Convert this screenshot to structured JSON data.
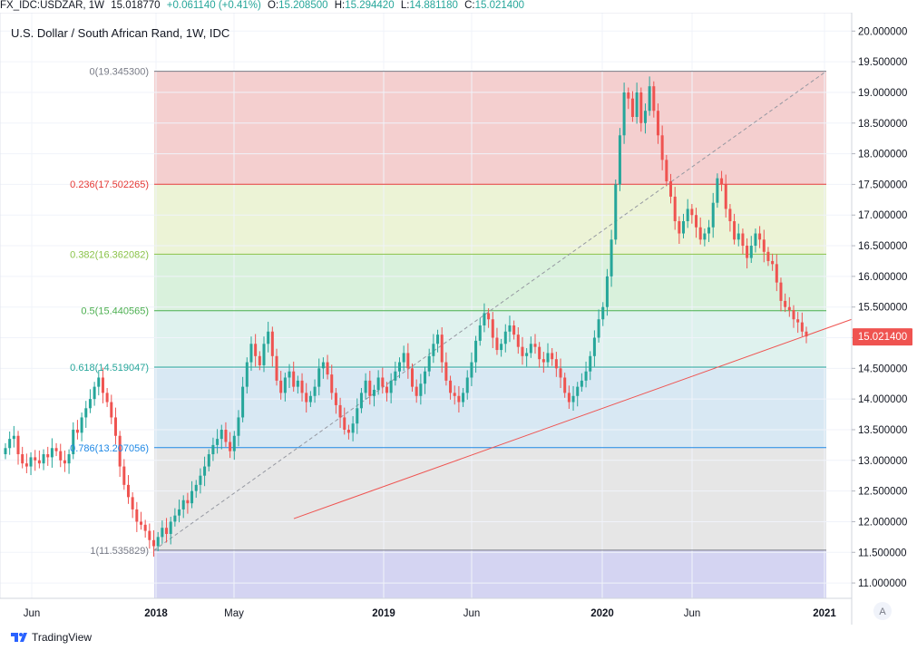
{
  "header": {
    "symbol": "FX_IDC:USDZAR, 1W",
    "last": "15.018770",
    "change": "+0.061140 (+0.41%)",
    "o_label": "O:",
    "o": "15.208500",
    "h_label": "H:",
    "h": "15.294420",
    "l_label": "L:",
    "l": "14.881180",
    "c_label": "C:",
    "c": "15.021400"
  },
  "chart_title": "U.S. Dollar / South African Rand, 1W, IDC",
  "price_badge": "15.021400",
  "auto_scale": "A",
  "brand": "TradingView",
  "colors": {
    "up": "#26a69a",
    "down": "#ef5350",
    "badge": "#ef5350",
    "fib_0": "#f4cfcf",
    "fib_236": "#ecf3d6",
    "fib_382": "#d9f1dc",
    "fib_5": "#dff2ee",
    "fib_618": "#d8e8f3",
    "fib_786": "#e6e6e6",
    "fib_1": "#d4d4f2"
  },
  "chart_data": {
    "type": "candlestick",
    "title": "U.S. Dollar / South African Rand, 1W, IDC",
    "x_ticks": [
      "Jun",
      "2018",
      "May",
      "2019",
      "Jun",
      "2020",
      "Jun",
      "2021"
    ],
    "y_ticks": [
      "11.000000",
      "11.500000",
      "12.000000",
      "12.500000",
      "13.000000",
      "13.500000",
      "14.000000",
      "14.500000",
      "15.000000",
      "15.500000",
      "16.000000",
      "16.500000",
      "17.000000",
      "17.500000",
      "18.000000",
      "18.500000",
      "19.000000",
      "19.500000",
      "20.000000"
    ],
    "ylim": [
      10.75,
      20.3
    ],
    "fib_levels": [
      {
        "ratio": "0",
        "price": 19.3453,
        "label": "0(19.345300)",
        "color": "#787b86"
      },
      {
        "ratio": "0.236",
        "price": 17.502265,
        "label": "0.236(17.502265)",
        "color": "#e53935"
      },
      {
        "ratio": "0.382",
        "price": 16.362082,
        "label": "0.382(16.362082)",
        "color": "#8bc34a"
      },
      {
        "ratio": "0.5",
        "price": 15.440565,
        "label": "0.5(15.440565)",
        "color": "#4caf50"
      },
      {
        "ratio": "0.618",
        "price": 14.519047,
        "label": "0.618(14.519047)",
        "color": "#26a69a"
      },
      {
        "ratio": "0.786",
        "price": 13.207056,
        "label": "0.786(13.207056)",
        "color": "#1e88e5"
      },
      {
        "ratio": "1",
        "price": 11.535829,
        "label": "1(11.535829)",
        "color": "#787b86"
      }
    ],
    "trend_line": {
      "from": [
        0.345,
        12.05
      ],
      "to": [
        1.0,
        15.3
      ]
    },
    "fib_diagonal": {
      "from": [
        0.0,
        11.535829
      ],
      "to": [
        1.0,
        19.3453
      ]
    },
    "closes": [
      13.2,
      13.35,
      13.4,
      13.1,
      12.95,
      12.9,
      13.05,
      13.0,
      12.95,
      13.1,
      13.05,
      13.2,
      13.15,
      13.0,
      12.95,
      13.1,
      13.5,
      13.45,
      13.7,
      13.85,
      14.0,
      14.2,
      14.35,
      14.1,
      13.95,
      13.7,
      13.4,
      12.9,
      12.6,
      12.4,
      12.2,
      12.0,
      11.95,
      11.85,
      11.7,
      11.6,
      11.75,
      11.9,
      11.8,
      12.0,
      12.1,
      12.2,
      12.35,
      12.3,
      12.5,
      12.6,
      12.75,
      12.9,
      13.1,
      13.25,
      13.35,
      13.5,
      13.3,
      13.15,
      13.4,
      13.7,
      14.2,
      14.6,
      14.9,
      14.7,
      14.55,
      14.9,
      15.1,
      14.7,
      14.3,
      14.1,
      14.35,
      14.45,
      14.2,
      14.3,
      14.1,
      13.95,
      14.05,
      14.2,
      14.5,
      14.6,
      14.4,
      14.1,
      13.9,
      13.7,
      13.5,
      13.45,
      13.6,
      13.85,
      14.1,
      14.3,
      14.05,
      14.15,
      14.35,
      14.2,
      14.1,
      14.3,
      14.45,
      14.6,
      14.75,
      14.5,
      14.2,
      14.05,
      14.25,
      14.45,
      14.7,
      14.9,
      15.05,
      14.6,
      14.3,
      14.1,
      14.05,
      13.95,
      14.1,
      14.35,
      14.6,
      14.95,
      15.2,
      15.4,
      15.3,
      15.0,
      14.8,
      14.9,
      15.1,
      15.2,
      15.05,
      14.85,
      14.7,
      14.75,
      14.9,
      14.85,
      14.65,
      14.6,
      14.75,
      14.65,
      14.5,
      14.35,
      14.1,
      13.95,
      14.05,
      14.2,
      14.3,
      14.45,
      14.7,
      15.0,
      15.3,
      15.5,
      16.0,
      16.6,
      17.5,
      18.3,
      19.0,
      18.9,
      18.6,
      19.0,
      18.5,
      18.7,
      19.1,
      18.7,
      18.3,
      17.9,
      17.55,
      17.3,
      16.9,
      16.7,
      16.9,
      17.1,
      17.0,
      16.8,
      16.6,
      16.7,
      16.8,
      17.2,
      17.6,
      17.5,
      17.1,
      16.9,
      16.6,
      16.7,
      16.5,
      16.3,
      16.5,
      16.7,
      16.6,
      16.4,
      16.25,
      16.2,
      15.9,
      15.6,
      15.5,
      15.45,
      15.3,
      15.25,
      15.1,
      15.02
    ]
  }
}
